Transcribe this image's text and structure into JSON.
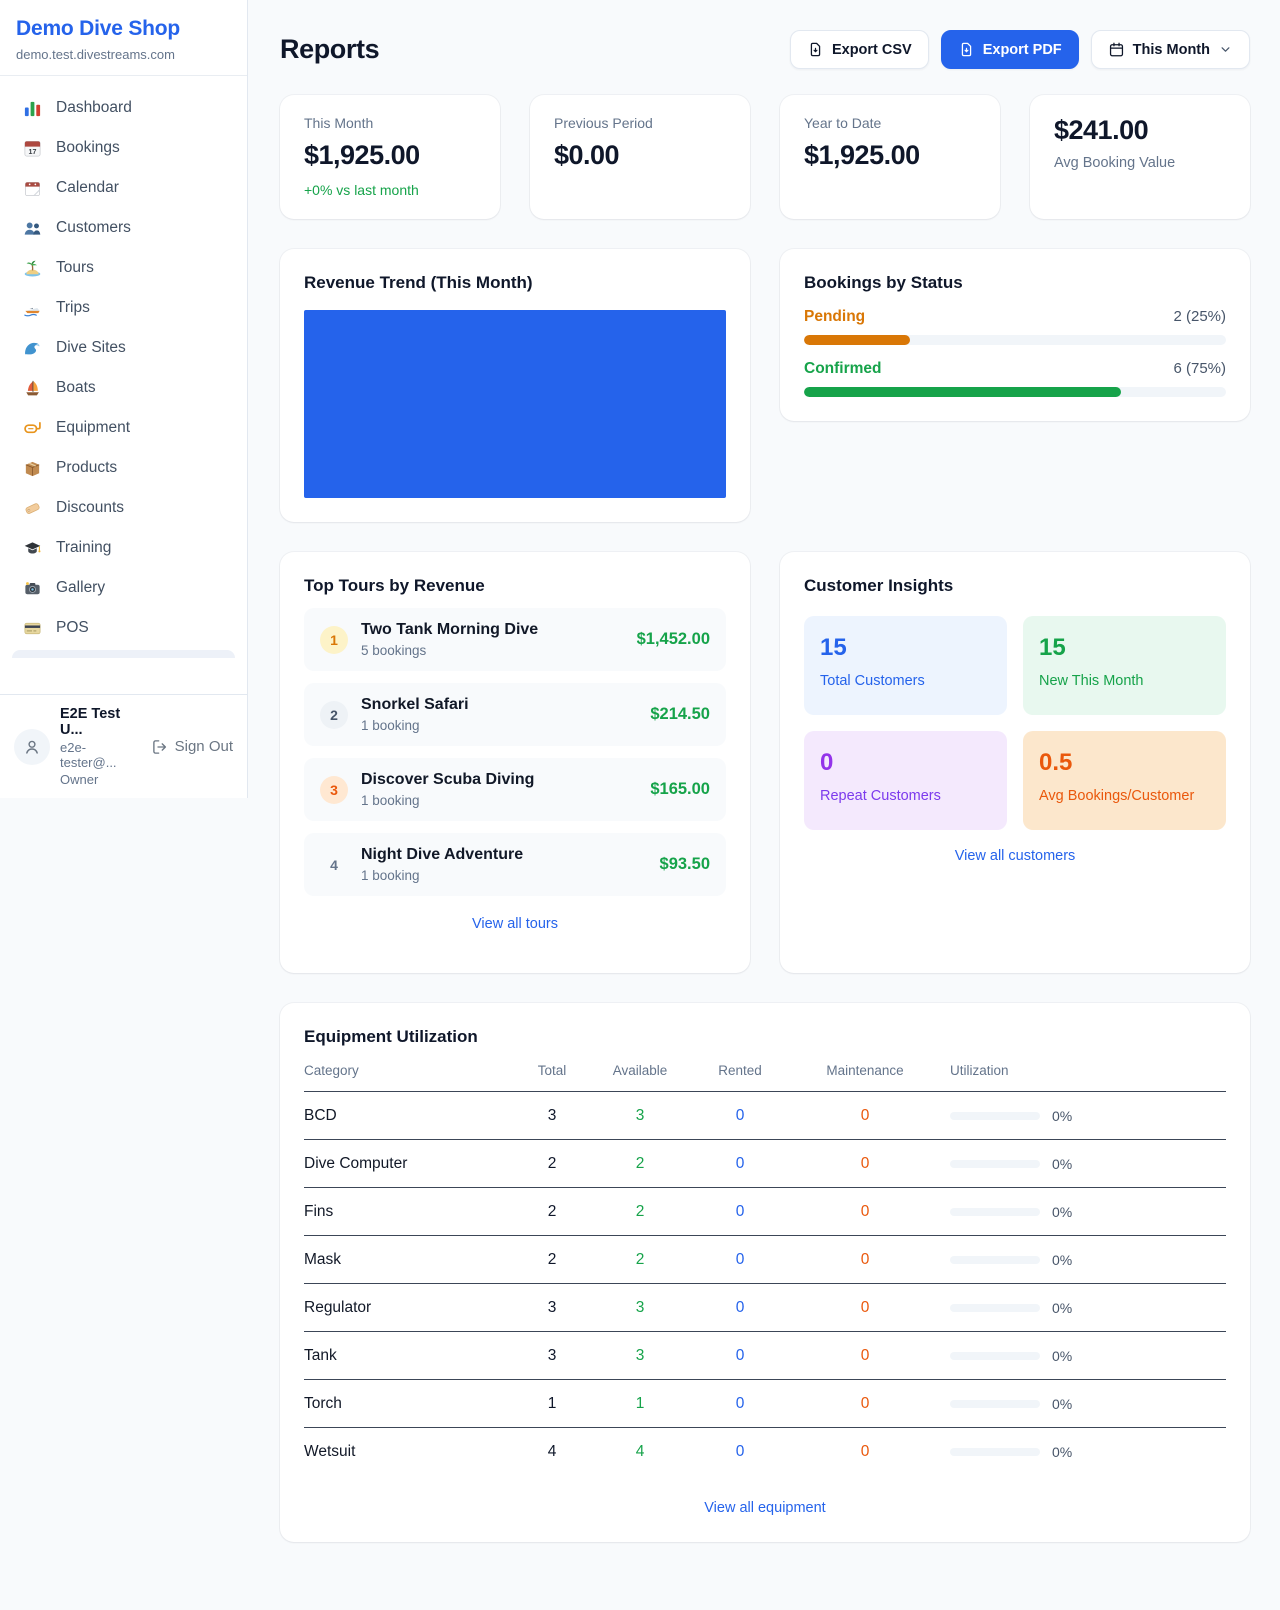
{
  "colors": {
    "brand_blue": "#2563eb",
    "page_background": "#f8fafc",
    "positive_green": "#16a34a",
    "pending_orange": "#d97706",
    "rented_blue": "#2563eb",
    "maintenance_orange": "#ea580c",
    "repeat_purple": "#9333ea",
    "revenue_chart_fill": "#2563eb"
  },
  "sidebar": {
    "brand": {
      "name": "Demo Dive Shop",
      "domain": "demo.test.divestreams.com"
    },
    "items": [
      {
        "label": "Dashboard",
        "icon": "bar-chart"
      },
      {
        "label": "Bookings",
        "icon": "calendar-17"
      },
      {
        "label": "Calendar",
        "icon": "tear-off-calendar"
      },
      {
        "label": "Customers",
        "icon": "people"
      },
      {
        "label": "Tours",
        "icon": "desert-island"
      },
      {
        "label": "Trips",
        "icon": "speedboat"
      },
      {
        "label": "Dive Sites",
        "icon": "water-wave"
      },
      {
        "label": "Boats",
        "icon": "sailboat"
      },
      {
        "label": "Equipment",
        "icon": "diving-mask"
      },
      {
        "label": "Products",
        "icon": "package-box"
      },
      {
        "label": "Discounts",
        "icon": "price-tag"
      },
      {
        "label": "Training",
        "icon": "graduation-cap"
      },
      {
        "label": "Gallery",
        "icon": "camera-flash"
      },
      {
        "label": "POS",
        "icon": "credit-card"
      }
    ],
    "user": {
      "name": "E2E Test U...",
      "email": "e2e-tester@...",
      "role": "Owner",
      "sign_out_label": "Sign Out"
    }
  },
  "header": {
    "title": "Reports",
    "export_csv_label": "Export CSV",
    "export_pdf_label": "Export PDF",
    "period_label": "This Month"
  },
  "stats": {
    "this_month": {
      "label": "This Month",
      "value": "$1,925.00",
      "delta": "+0% vs last month"
    },
    "previous_period": {
      "label": "Previous Period",
      "value": "$0.00"
    },
    "year_to_date": {
      "label": "Year to Date",
      "value": "$1,925.00"
    },
    "avg_booking": {
      "value": "$241.00",
      "label": "Avg Booking Value"
    }
  },
  "revenue_trend": {
    "title": "Revenue Trend (This Month)"
  },
  "bookings_by_status": {
    "title": "Bookings by Status",
    "rows": [
      {
        "label": "Pending",
        "value_text": "2 (25%)",
        "pct": 25
      },
      {
        "label": "Confirmed",
        "value_text": "6 (75%)",
        "pct": 75
      }
    ]
  },
  "top_tours": {
    "title": "Top Tours by Revenue",
    "rows": [
      {
        "rank": "1",
        "name": "Two Tank Morning Dive",
        "bookings": "5 bookings",
        "revenue": "$1,452.00"
      },
      {
        "rank": "2",
        "name": "Snorkel Safari",
        "bookings": "1 booking",
        "revenue": "$214.50"
      },
      {
        "rank": "3",
        "name": "Discover Scuba Diving",
        "bookings": "1 booking",
        "revenue": "$165.00"
      },
      {
        "rank": "4",
        "name": "Night Dive Adventure",
        "bookings": "1 booking",
        "revenue": "$93.50"
      }
    ],
    "view_all_label": "View all tours"
  },
  "customer_insights": {
    "title": "Customer Insights",
    "tiles": [
      {
        "value": "15",
        "label": "Total Customers"
      },
      {
        "value": "15",
        "label": "New This Month"
      },
      {
        "value": "0",
        "label": "Repeat Customers"
      },
      {
        "value": "0.5",
        "label": "Avg Bookings/Customer"
      }
    ],
    "view_all_label": "View all customers"
  },
  "equipment_utilization": {
    "title": "Equipment Utilization",
    "columns": [
      "Category",
      "Total",
      "Available",
      "Rented",
      "Maintenance",
      "Utilization"
    ],
    "rows": [
      {
        "category": "BCD",
        "total": "3",
        "available": "3",
        "rented": "0",
        "maintenance": "0",
        "utilization": "0%",
        "pct": 0
      },
      {
        "category": "Dive Computer",
        "total": "2",
        "available": "2",
        "rented": "0",
        "maintenance": "0",
        "utilization": "0%",
        "pct": 0
      },
      {
        "category": "Fins",
        "total": "2",
        "available": "2",
        "rented": "0",
        "maintenance": "0",
        "utilization": "0%",
        "pct": 0
      },
      {
        "category": "Mask",
        "total": "2",
        "available": "2",
        "rented": "0",
        "maintenance": "0",
        "utilization": "0%",
        "pct": 0
      },
      {
        "category": "Regulator",
        "total": "3",
        "available": "3",
        "rented": "0",
        "maintenance": "0",
        "utilization": "0%",
        "pct": 0
      },
      {
        "category": "Tank",
        "total": "3",
        "available": "3",
        "rented": "0",
        "maintenance": "0",
        "utilization": "0%",
        "pct": 0
      },
      {
        "category": "Torch",
        "total": "1",
        "available": "1",
        "rented": "0",
        "maintenance": "0",
        "utilization": "0%",
        "pct": 0
      },
      {
        "category": "Wetsuit",
        "total": "4",
        "available": "4",
        "rented": "0",
        "maintenance": "0",
        "utilization": "0%",
        "pct": 0
      }
    ],
    "view_all_label": "View all equipment"
  }
}
